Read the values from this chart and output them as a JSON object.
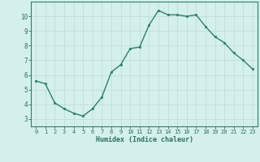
{
  "x": [
    0,
    1,
    2,
    3,
    4,
    5,
    6,
    7,
    8,
    9,
    10,
    11,
    12,
    13,
    14,
    15,
    16,
    17,
    18,
    19,
    20,
    21,
    22,
    23
  ],
  "y": [
    5.6,
    5.4,
    4.1,
    3.7,
    3.4,
    3.2,
    3.7,
    4.5,
    6.2,
    6.7,
    7.8,
    7.9,
    9.4,
    10.4,
    10.1,
    10.1,
    10.0,
    10.1,
    9.3,
    8.6,
    8.2,
    7.5,
    7.0,
    6.4
  ],
  "xlabel": "Humidex (Indice chaleur)",
  "xlim": [
    -0.5,
    23.5
  ],
  "ylim": [
    2.5,
    11.0
  ],
  "yticks": [
    3,
    4,
    5,
    6,
    7,
    8,
    9,
    10
  ],
  "xticks": [
    0,
    1,
    2,
    3,
    4,
    5,
    6,
    7,
    8,
    9,
    10,
    11,
    12,
    13,
    14,
    15,
    16,
    17,
    18,
    19,
    20,
    21,
    22,
    23
  ],
  "line_color": "#2e7d6e",
  "marker_color": "#2e7d6e",
  "bg_color": "#d4f0ec",
  "grid_color": "#c0ddd8",
  "label_color": "#2e6e60",
  "axis_color": "#2e7d6e",
  "tick_fontsize": 5.0,
  "xlabel_fontsize": 6.0
}
